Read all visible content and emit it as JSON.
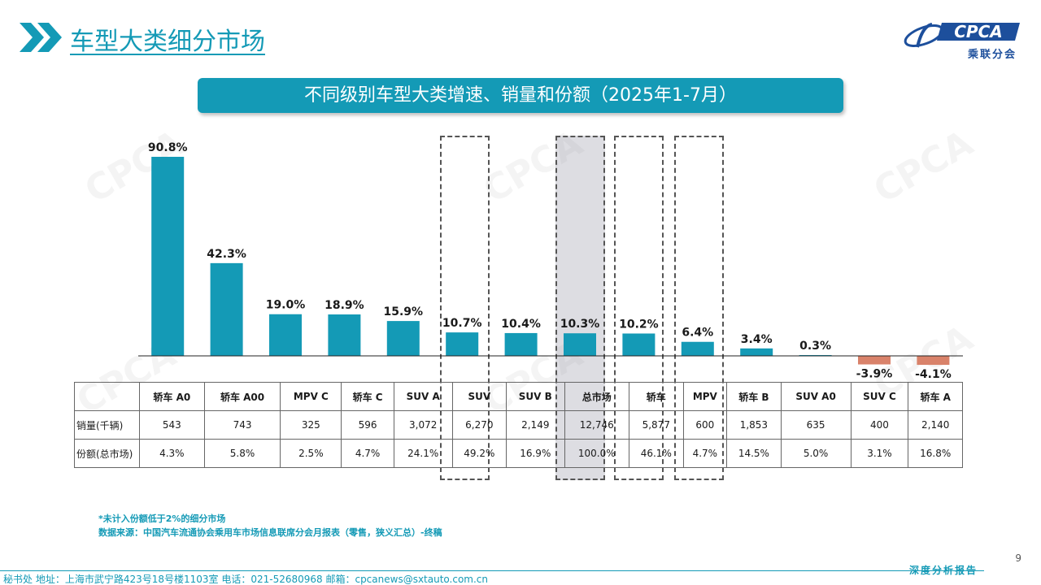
{
  "page_title": "车型大类细分市场",
  "logo": {
    "text": "CPCA",
    "cn": "乘联分会"
  },
  "watermark": "CPCA",
  "chart_data": {
    "type": "bar",
    "title": "不同级别车型大类增速、销量和份额（2025年1-7月）",
    "categories": [
      "轿车 A0",
      "轿车 A00",
      "MPV C",
      "轿车 C",
      "SUV A",
      "SUV",
      "SUV B",
      "总市场",
      "轿车",
      "MPV",
      "轿车 B",
      "SUV A0",
      "SUV C",
      "轿车 A"
    ],
    "values": [
      90.8,
      42.3,
      19.0,
      18.9,
      15.9,
      10.7,
      10.4,
      10.3,
      10.2,
      6.4,
      3.4,
      0.3,
      -3.9,
      -4.1
    ],
    "value_labels": [
      "90.8%",
      "42.3%",
      "19.0%",
      "18.9%",
      "15.9%",
      "10.7%",
      "10.4%",
      "10.3%",
      "10.2%",
      "6.4%",
      "3.4%",
      "0.3%",
      "-3.9%",
      "-4.1%"
    ],
    "colors": {
      "positive": "#149ab6",
      "negative": "#d9826a"
    },
    "highlighted": [
      "SUV",
      "总市场",
      "轿车",
      "MPV"
    ],
    "shaded": [
      "总市场"
    ],
    "table": {
      "rows": [
        {
          "label": "销量(千辆)",
          "values": [
            "543",
            "743",
            "325",
            "596",
            "3,072",
            "6,270",
            "2,149",
            "12,746",
            "5,877",
            "600",
            "1,853",
            "635",
            "400",
            "2,140"
          ]
        },
        {
          "label": "份额(总市场)",
          "values": [
            "4.3%",
            "5.8%",
            "2.5%",
            "4.7%",
            "24.1%",
            "49.2%",
            "16.9%",
            "100.0%",
            "46.1%",
            "4.7%",
            "14.5%",
            "5.0%",
            "3.1%",
            "16.8%"
          ]
        }
      ]
    }
  },
  "notes": {
    "note1": "*未计入份额低于2%的细分市场",
    "source": "数据来源：中国汽车流通协会乘用车市场信息联席分会月报表（零售，狭义汇总）-终稿"
  },
  "page_number": "9",
  "footer": {
    "address": "秘书处   地址：上海市武宁路423号18号楼1103室   电话：021-52680968   邮箱：cpcanews@sxtauto.com.cn",
    "tag": "深度分析报告"
  }
}
